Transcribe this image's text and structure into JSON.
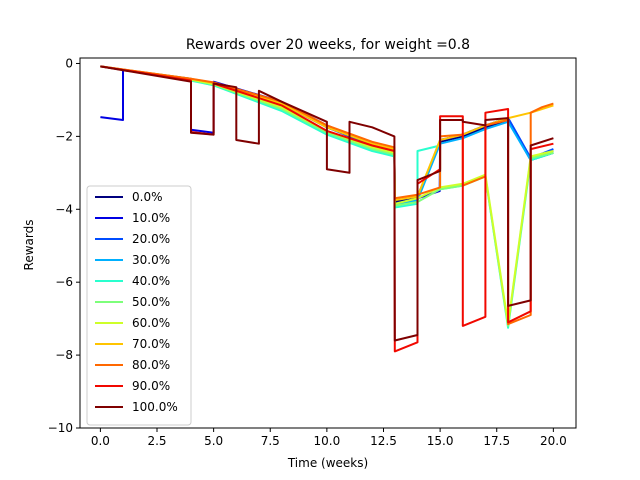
{
  "chart_data": {
    "type": "line",
    "title": "Rewards over 20 weeks, for weight =0.8",
    "xlabel": "Time (weeks)",
    "ylabel": "Rewards",
    "xlim": [
      -0.9,
      21.0
    ],
    "ylim": [
      -10,
      0.15
    ],
    "xticks": [
      0.0,
      2.5,
      5.0,
      7.5,
      10.0,
      12.5,
      15.0,
      17.5,
      20.0
    ],
    "xtick_labels": [
      "0.0",
      "2.5",
      "5.0",
      "7.5",
      "10.0",
      "12.5",
      "15.0",
      "17.5",
      "20.0"
    ],
    "yticks": [
      0,
      -2,
      -4,
      -6,
      -8,
      -10
    ],
    "ytick_labels": [
      "0",
      "−2",
      "−4",
      "−6",
      "−8",
      "−10"
    ],
    "grid": false,
    "legend_position": "lower-left",
    "series": [
      {
        "name": "0.0%",
        "color": "#00007f",
        "x": [
          0,
          1,
          1,
          4,
          4,
          5,
          5,
          8,
          10,
          12,
          12.98,
          13,
          14,
          15,
          16,
          17,
          18,
          19,
          20
        ],
        "y": [
          -0.08,
          -0.17,
          -0.17,
          -0.45,
          -0.45,
          -0.55,
          -0.55,
          -1.1,
          -1.75,
          -2.2,
          -2.4,
          -3.8,
          -3.65,
          -2.15,
          -2.0,
          -1.75,
          -1.55,
          -2.65,
          -2.45
        ]
      },
      {
        "name": "10.0%",
        "color": "#0000e3",
        "x": [
          0,
          1,
          1,
          4,
          4,
          5,
          5,
          8,
          10,
          12,
          12.98,
          13,
          14,
          14.98,
          15,
          16,
          17,
          18,
          19,
          20
        ],
        "y": [
          -1.47,
          -1.55,
          -0.17,
          -0.42,
          -1.82,
          -1.9,
          -0.5,
          -1.05,
          -1.7,
          -2.2,
          -2.4,
          -3.85,
          -3.7,
          -3.5,
          -2.1,
          -1.95,
          -1.7,
          -1.5,
          -2.6,
          -2.4
        ]
      },
      {
        "name": "20.0%",
        "color": "#004cff",
        "x": [
          0,
          4,
          4,
          5,
          5,
          8,
          10,
          12,
          12.98,
          13,
          14,
          15,
          16,
          17,
          18,
          19,
          20
        ],
        "y": [
          -0.08,
          -0.43,
          -0.43,
          -0.55,
          -0.55,
          -1.1,
          -1.75,
          -2.25,
          -2.45,
          -3.85,
          -3.7,
          -2.1,
          -1.95,
          -1.7,
          -1.5,
          -2.6,
          -2.35
        ]
      },
      {
        "name": "30.0%",
        "color": "#00b0ff",
        "x": [
          0,
          4,
          4,
          5,
          5,
          8,
          10,
          12,
          12.98,
          13,
          14,
          15,
          16,
          17,
          18,
          19,
          20
        ],
        "y": [
          -0.08,
          -0.45,
          -0.45,
          -0.6,
          -0.6,
          -1.2,
          -1.85,
          -2.35,
          -2.5,
          -3.9,
          -3.75,
          -2.2,
          -2.05,
          -1.8,
          -1.6,
          -2.65,
          -2.45
        ]
      },
      {
        "name": "40.0%",
        "color": "#29ffce",
        "x": [
          0,
          4,
          4,
          5,
          5,
          8,
          10,
          12,
          12.98,
          13,
          14,
          14,
          15,
          15,
          16,
          17,
          18,
          19,
          20
        ],
        "y": [
          -0.08,
          -0.47,
          -0.47,
          -0.6,
          -0.6,
          -1.3,
          -1.95,
          -2.4,
          -2.55,
          -3.95,
          -3.85,
          -2.4,
          -2.25,
          -3.45,
          -3.35,
          -3.1,
          -7.25,
          -2.65,
          -2.45
        ]
      },
      {
        "name": "50.0%",
        "color": "#7dff7a",
        "x": [
          0,
          4,
          4,
          5,
          5,
          8,
          10,
          12,
          12.98,
          13,
          14,
          15,
          16,
          17,
          18,
          19,
          20
        ],
        "y": [
          -0.08,
          -0.45,
          -0.45,
          -0.58,
          -0.58,
          -1.25,
          -1.9,
          -2.35,
          -2.5,
          -3.9,
          -3.8,
          -3.45,
          -3.35,
          -3.1,
          -7.2,
          -2.6,
          -2.45
        ]
      },
      {
        "name": "60.0%",
        "color": "#ceff29",
        "x": [
          0,
          4,
          4,
          5,
          5,
          8,
          10,
          12,
          12.98,
          13,
          14,
          15,
          16,
          17,
          18,
          19,
          20
        ],
        "y": [
          -0.08,
          -0.44,
          -0.44,
          -0.56,
          -0.56,
          -1.2,
          -1.85,
          -2.3,
          -2.45,
          -3.85,
          -3.7,
          -3.4,
          -3.3,
          -3.05,
          -7.15,
          -2.55,
          -2.4
        ]
      },
      {
        "name": "70.0%",
        "color": "#ffc400",
        "x": [
          0,
          4,
          4,
          5,
          5,
          8,
          10,
          12,
          12.98,
          13,
          14,
          15,
          16,
          17,
          18,
          19,
          20
        ],
        "y": [
          -0.08,
          -0.42,
          -0.42,
          -0.53,
          -0.53,
          -1.1,
          -1.75,
          -2.2,
          -2.35,
          -3.75,
          -3.65,
          -2.1,
          -1.95,
          -1.7,
          -1.5,
          -1.35,
          -1.15
        ]
      },
      {
        "name": "80.0%",
        "color": "#ff6800",
        "x": [
          0,
          4,
          4,
          5,
          5,
          8,
          10,
          12,
          12.98,
          13,
          14,
          14,
          15,
          15,
          16,
          16,
          17,
          17,
          18,
          18,
          19,
          19,
          19.5,
          20
        ],
        "y": [
          -0.08,
          -0.42,
          -0.42,
          -0.52,
          -0.52,
          -1.05,
          -1.7,
          -2.15,
          -2.3,
          -3.7,
          -3.6,
          -3.6,
          -3.4,
          -2.0,
          -1.95,
          -3.35,
          -3.1,
          -1.7,
          -1.55,
          -7.15,
          -6.9,
          -1.35,
          -1.2,
          -1.1
        ]
      },
      {
        "name": "90.0%",
        "color": "#f10800",
        "x": [
          0,
          4,
          4,
          5,
          5,
          8,
          10,
          12,
          12.98,
          13,
          14,
          14,
          15,
          15,
          16,
          16,
          17,
          17,
          18,
          18,
          19,
          19,
          20
        ],
        "y": [
          -0.08,
          -0.47,
          -1.88,
          -1.95,
          -0.55,
          -1.15,
          -1.85,
          -2.25,
          -2.4,
          -7.9,
          -7.65,
          -3.3,
          -2.9,
          -1.45,
          -1.45,
          -7.2,
          -6.95,
          -1.35,
          -1.25,
          -7.1,
          -6.8,
          -2.35,
          -2.2
        ]
      },
      {
        "name": "100.0%",
        "color": "#7f0000",
        "x": [
          0,
          4,
          4,
          5,
          5,
          6,
          6,
          7,
          7,
          8,
          10,
          10,
          11,
          11,
          12,
          12.98,
          13,
          14,
          14,
          15,
          15,
          16,
          16,
          17,
          17,
          18,
          18,
          19,
          19,
          20
        ],
        "y": [
          -0.08,
          -0.5,
          -1.9,
          -1.95,
          -0.55,
          -0.65,
          -2.1,
          -2.2,
          -0.75,
          -1.05,
          -1.6,
          -2.9,
          -3.0,
          -1.6,
          -1.75,
          -2.0,
          -7.6,
          -7.45,
          -3.2,
          -2.95,
          -1.55,
          -1.55,
          -1.6,
          -1.7,
          -1.55,
          -1.5,
          -6.65,
          -6.5,
          -2.25,
          -2.05
        ]
      }
    ]
  }
}
